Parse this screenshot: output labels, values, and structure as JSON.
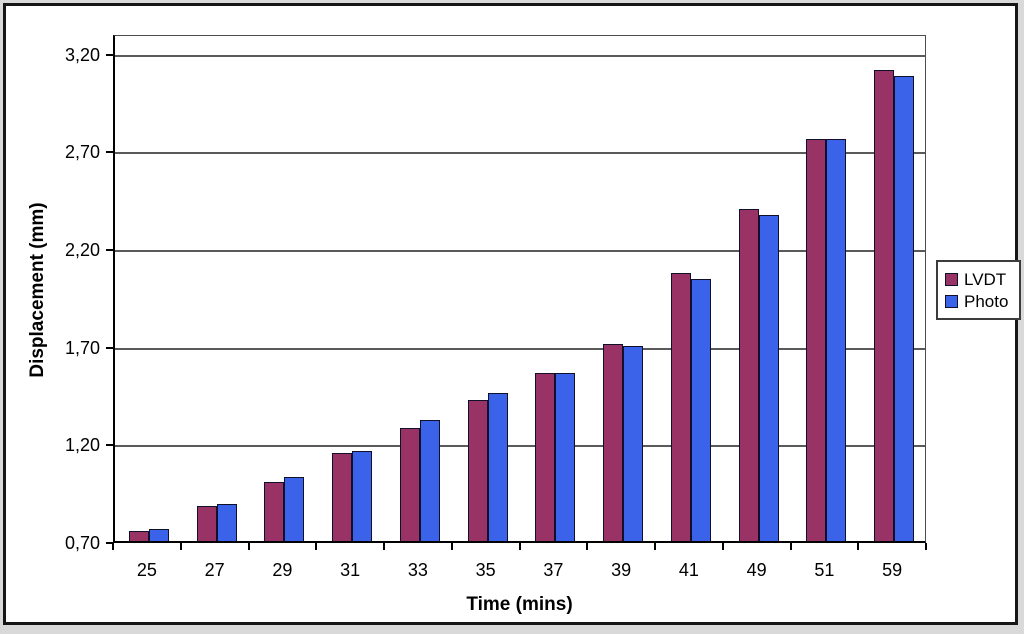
{
  "chart_data": {
    "type": "bar",
    "title": "",
    "xlabel": "Time (mins)",
    "ylabel": "Displacement (mm)",
    "categories": [
      "25",
      "27",
      "29",
      "31",
      "33",
      "35",
      "37",
      "39",
      "41",
      "49",
      "51",
      "59"
    ],
    "series": [
      {
        "name": "LVDT",
        "color": "#993366",
        "values": [
          0.75,
          0.88,
          1.0,
          1.15,
          1.28,
          1.42,
          1.56,
          1.71,
          2.07,
          2.4,
          2.76,
          3.11
        ]
      },
      {
        "name": "Photo",
        "color": "#3A63E9",
        "values": [
          0.76,
          0.89,
          1.03,
          1.16,
          1.32,
          1.46,
          1.56,
          1.7,
          2.04,
          2.37,
          2.76,
          3.08
        ]
      }
    ],
    "y_axis": {
      "min": 0.7,
      "max": 3.3,
      "tick_step": 0.5,
      "tick_labels": [
        "0,70",
        "1,20",
        "1,70",
        "2,20",
        "2,70",
        "3,20"
      ]
    },
    "grid": true,
    "legend_position": "right",
    "colors": {
      "gridline": "#5a5a5a",
      "plot_border": "#4d4d4d",
      "axis_line": "#000000",
      "bar_border": "#10102a",
      "background": "#ffffff"
    }
  }
}
